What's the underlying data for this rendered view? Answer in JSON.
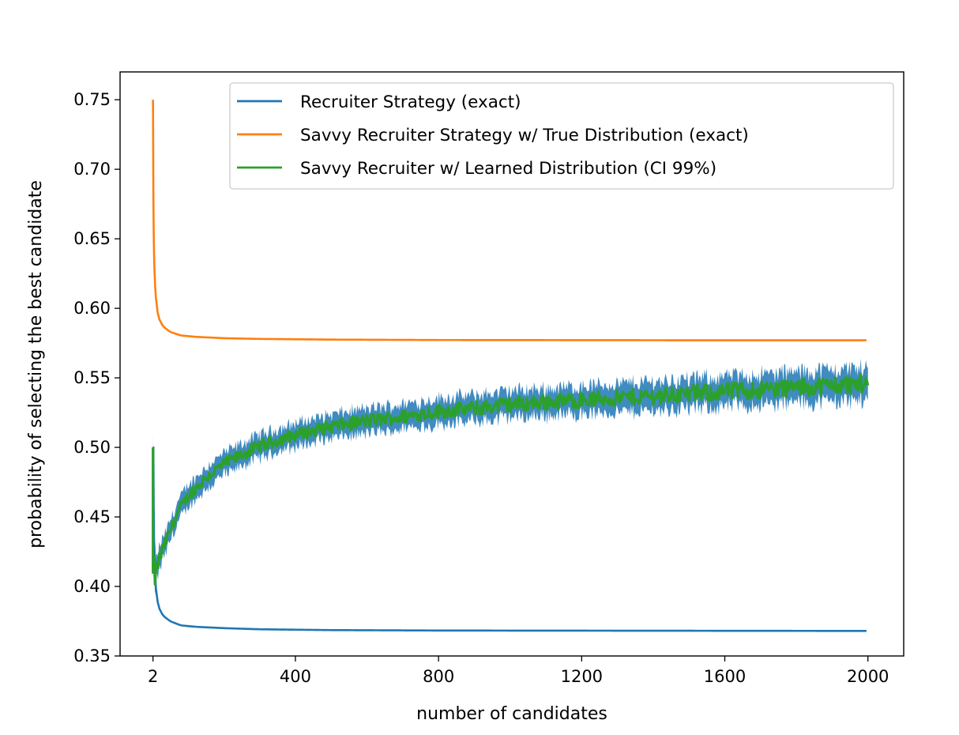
{
  "chart_data": {
    "type": "line",
    "title": "",
    "xlabel": "number of candidates",
    "ylabel": "probability of selecting the best candidate",
    "xlim": [
      -90,
      2100
    ],
    "ylim": [
      0.35,
      0.77
    ],
    "xticks": [
      2,
      400,
      800,
      1200,
      1600,
      2000
    ],
    "xtick_labels": [
      "2",
      "400",
      "800",
      "1200",
      "1600",
      "2000"
    ],
    "yticks": [
      0.35,
      0.4,
      0.45,
      0.5,
      0.55,
      0.6,
      0.65,
      0.7,
      0.75
    ],
    "ytick_labels": [
      "0.35",
      "0.40",
      "0.45",
      "0.50",
      "0.55",
      "0.60",
      "0.65",
      "0.70",
      "0.75"
    ],
    "grid": false,
    "legend_position": "upper-right",
    "series": [
      {
        "name": "Recruiter Strategy (exact)",
        "color": "#1f77b4",
        "x": [
          2,
          3,
          4,
          5,
          6,
          8,
          10,
          15,
          20,
          30,
          50,
          80,
          120,
          200,
          300,
          500,
          800,
          1200,
          1600,
          2000
        ],
        "y": [
          0.5,
          0.5,
          0.458,
          0.433,
          0.428,
          0.41,
          0.399,
          0.389,
          0.384,
          0.379,
          0.375,
          0.372,
          0.371,
          0.37,
          0.3692,
          0.3686,
          0.3683,
          0.3682,
          0.3681,
          0.368
        ]
      },
      {
        "name": "Savvy Recruiter Strategy w/ True Distribution (exact)",
        "color": "#ff7f0e",
        "x": [
          2,
          3,
          4,
          5,
          6,
          8,
          10,
          15,
          20,
          30,
          50,
          80,
          120,
          200,
          300,
          500,
          800,
          1200,
          1600,
          2000
        ],
        "y": [
          0.75,
          0.684,
          0.655,
          0.639,
          0.629,
          0.616,
          0.608,
          0.597,
          0.592,
          0.587,
          0.583,
          0.5805,
          0.5795,
          0.5785,
          0.578,
          0.5775,
          0.5772,
          0.5771,
          0.577,
          0.577
        ]
      },
      {
        "name": "Savvy Recruiter w/ Learned Distribution (CI 99%)",
        "color": "#2ca02c",
        "ci_color": "#1f77b4",
        "x": [
          2,
          3,
          5,
          8,
          10,
          20,
          30,
          50,
          75,
          100,
          150,
          200,
          300,
          400,
          500,
          600,
          700,
          800,
          900,
          1000,
          1200,
          1400,
          1600,
          1800,
          2000
        ],
        "y": [
          0.5,
          0.49,
          0.41,
          0.405,
          0.41,
          0.42,
          0.427,
          0.44,
          0.455,
          0.465,
          0.478,
          0.488,
          0.501,
          0.509,
          0.515,
          0.519,
          0.522,
          0.526,
          0.528,
          0.531,
          0.534,
          0.537,
          0.54,
          0.543,
          0.546
        ]
      }
    ]
  }
}
